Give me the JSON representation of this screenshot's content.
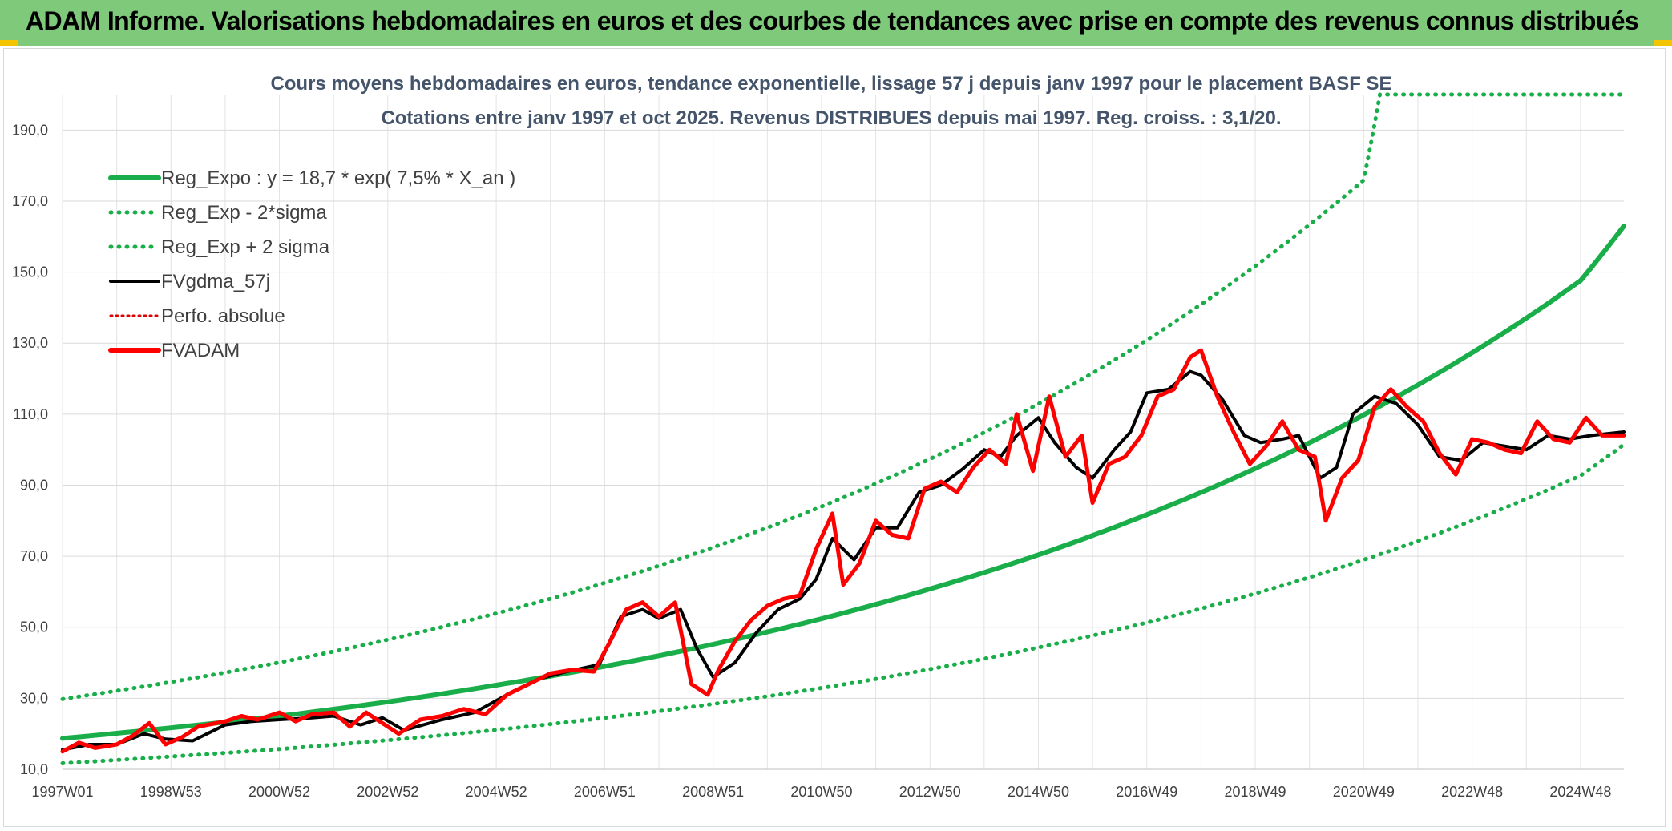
{
  "header": {
    "title": "ADAM Informe. Valorisations hebdomadaires en euros et des courbes de tendances avec prise en compte des revenus connus distribués"
  },
  "chart_data": {
    "type": "line",
    "title": "Cours moyens hebdomadaires en euros, tendance exponentielle, lissage 57 j depuis janv 1997 pour le placement BASF SE",
    "subtitle": "Cotations entre janv 1997 et oct 2025. Revenus DISTRIBUES depuis mai 1997. Reg. croiss. : 3,1/20.",
    "xlabel": "",
    "ylabel": "",
    "x_range": [
      1997.0,
      2025.8
    ],
    "ylim": [
      10,
      200
    ],
    "y_ticks": [
      10,
      30,
      50,
      70,
      90,
      110,
      130,
      150,
      170,
      190
    ],
    "y_tick_labels": [
      "10,0",
      "30,0",
      "50,0",
      "70,0",
      "90,0",
      "110,0",
      "130,0",
      "150,0",
      "170,0",
      "190,0"
    ],
    "x_ticks": [
      1997.0,
      1999.0,
      2001.0,
      2003.0,
      2005.0,
      2007.0,
      2009.0,
      2011.0,
      2013.0,
      2015.0,
      2017.0,
      2019.0,
      2021.0,
      2023.0,
      2025.0
    ],
    "x_tick_labels": [
      "1997W01",
      "1998W53",
      "2000W52",
      "2002W52",
      "2004W52",
      "2006W51",
      "2008W51",
      "2010W50",
      "2012W50",
      "2014W50",
      "2016W49",
      "2018W49",
      "2020W49",
      "2022W48",
      "2024W48"
    ],
    "grid": true,
    "legend_position": "top-left",
    "legend": [
      {
        "label": "Reg_Expo : y = 18,7 * exp( 7,5% *  X_an )",
        "color": "#1aae4a",
        "style": "solid"
      },
      {
        "label": "Reg_Exp - 2*sigma",
        "color": "#1aae4a",
        "style": "dotted"
      },
      {
        "label": "Reg_Exp + 2 sigma",
        "color": "#1aae4a",
        "style": "dotted"
      },
      {
        "label": "FVgdma_57j",
        "color": "#000000",
        "style": "solid"
      },
      {
        "label": "Perfo. absolue",
        "color": "#e00000",
        "style": "dotted"
      },
      {
        "label": "FVADAM",
        "color": "#ff0000",
        "style": "solid"
      }
    ],
    "series": [
      {
        "name": "Reg_Expo : y = 18,7 * exp( 7,5% *  X_an )",
        "x": [
          1997.0,
          1999.0,
          2001.0,
          2003.0,
          2005.0,
          2007.0,
          2009.0,
          2011.0,
          2013.0,
          2015.0,
          2017.0,
          2019.0,
          2021.0,
          2023.0,
          2025.0,
          2025.8
        ],
        "values": [
          18.7,
          21.7,
          25.0,
          29.0,
          33.7,
          39.0,
          45.2,
          52.4,
          60.8,
          70.4,
          81.7,
          94.7,
          109.8,
          127.3,
          147.6,
          163.0
        ]
      },
      {
        "name": "Reg_Exp - 2*sigma",
        "x": [
          1997.0,
          1999.0,
          2001.0,
          2003.0,
          2005.0,
          2007.0,
          2009.0,
          2011.0,
          2013.0,
          2015.0,
          2017.0,
          2019.0,
          2021.0,
          2023.0,
          2025.0,
          2025.8
        ],
        "values": [
          11.7,
          13.6,
          15.7,
          18.2,
          21.1,
          24.5,
          28.4,
          32.9,
          38.2,
          44.3,
          51.3,
          59.5,
          69.0,
          80.0,
          92.7,
          101.5
        ]
      },
      {
        "name": "Reg_Exp + 2 sigma",
        "x": [
          1997.0,
          1999.0,
          2001.0,
          2003.0,
          2005.0,
          2007.0,
          2009.0,
          2011.0,
          2013.0,
          2015.0,
          2017.0,
          2019.0,
          2021.0,
          2021.3,
          2025.8
        ],
        "values": [
          29.8,
          34.6,
          40.1,
          46.5,
          53.9,
          62.5,
          72.5,
          84.0,
          97.4,
          112.9,
          130.9,
          151.7,
          175.9,
          200.0,
          200.0
        ]
      },
      {
        "name": "FVgdma_57j",
        "x": [
          1997.0,
          1997.5,
          1998.0,
          1998.5,
          1998.9,
          1999.4,
          2000.0,
          2000.5,
          2001.0,
          2001.6,
          2002.0,
          2002.5,
          2002.9,
          2003.3,
          2004.0,
          2004.6,
          2005.2,
          2005.8,
          2006.3,
          2006.9,
          2007.3,
          2007.7,
          2008.0,
          2008.4,
          2008.7,
          2009.0,
          2009.4,
          2009.8,
          2010.2,
          2010.6,
          2010.9,
          2011.2,
          2011.6,
          2012.0,
          2012.4,
          2012.8,
          2013.2,
          2013.6,
          2014.0,
          2014.3,
          2014.6,
          2015.0,
          2015.3,
          2015.7,
          2016.0,
          2016.4,
          2016.7,
          2017.0,
          2017.4,
          2017.8,
          2018.0,
          2018.4,
          2018.8,
          2019.1,
          2019.5,
          2019.8,
          2020.2,
          2020.5,
          2020.8,
          2021.2,
          2021.6,
          2022.0,
          2022.4,
          2022.8,
          2023.2,
          2023.6,
          2024.0,
          2024.4,
          2024.8,
          2025.2,
          2025.8
        ],
        "values": [
          15.5,
          17.0,
          17.0,
          20.0,
          18.5,
          18.0,
          22.5,
          23.5,
          24.0,
          24.5,
          25.0,
          22.5,
          24.5,
          21.0,
          24.0,
          26.0,
          31.0,
          35.5,
          37.5,
          39.5,
          53.0,
          55.0,
          52.5,
          55.0,
          44.0,
          36.0,
          40.0,
          48.5,
          55.0,
          58.0,
          63.5,
          75.0,
          69.0,
          78.0,
          78.0,
          88.0,
          90.0,
          94.5,
          100.0,
          98.0,
          104.0,
          109.0,
          102.0,
          95.0,
          92.0,
          100.0,
          105.0,
          116.0,
          117.0,
          122.0,
          121.0,
          114.0,
          104.0,
          102.0,
          103.0,
          104.0,
          92.0,
          95.0,
          110.0,
          115.0,
          113.0,
          107.0,
          98.0,
          97.0,
          102.0,
          101.0,
          100.0,
          104.0,
          103.0,
          104.0,
          105.0
        ]
      },
      {
        "name": "FVADAM",
        "x": [
          1997.0,
          1997.3,
          1997.6,
          1998.0,
          1998.3,
          1998.6,
          1998.9,
          1999.2,
          1999.5,
          2000.0,
          2000.3,
          2000.6,
          2001.0,
          2001.3,
          2001.6,
          2002.0,
          2002.3,
          2002.6,
          2002.9,
          2003.2,
          2003.6,
          2004.0,
          2004.4,
          2004.8,
          2005.2,
          2005.6,
          2006.0,
          2006.4,
          2006.8,
          2007.1,
          2007.4,
          2007.7,
          2008.0,
          2008.3,
          2008.6,
          2008.9,
          2009.1,
          2009.4,
          2009.7,
          2010.0,
          2010.3,
          2010.6,
          2010.9,
          2011.2,
          2011.4,
          2011.7,
          2012.0,
          2012.3,
          2012.6,
          2012.9,
          2013.2,
          2013.5,
          2013.8,
          2014.1,
          2014.4,
          2014.6,
          2014.9,
          2015.2,
          2015.5,
          2015.8,
          2016.0,
          2016.3,
          2016.6,
          2016.9,
          2017.2,
          2017.5,
          2017.8,
          2018.0,
          2018.3,
          2018.6,
          2018.9,
          2019.2,
          2019.5,
          2019.8,
          2020.1,
          2020.3,
          2020.6,
          2020.9,
          2021.2,
          2021.5,
          2021.8,
          2022.1,
          2022.4,
          2022.7,
          2023.0,
          2023.3,
          2023.6,
          2023.9,
          2024.2,
          2024.5,
          2024.8,
          2025.1,
          2025.4,
          2025.8
        ],
        "values": [
          15.0,
          17.5,
          16.0,
          17.0,
          19.5,
          23.0,
          17.0,
          19.0,
          22.0,
          23.5,
          25.0,
          24.0,
          26.0,
          23.5,
          25.5,
          26.0,
          22.0,
          26.0,
          23.0,
          20.0,
          24.0,
          25.0,
          27.0,
          25.5,
          31.0,
          34.0,
          37.0,
          38.0,
          37.5,
          46.0,
          55.0,
          57.0,
          53.0,
          57.0,
          34.0,
          31.0,
          38.0,
          46.0,
          52.0,
          56.0,
          58.0,
          59.0,
          72.0,
          82.0,
          62.0,
          68.0,
          80.0,
          76.0,
          75.0,
          89.0,
          91.0,
          88.0,
          95.0,
          100.0,
          96.0,
          110.0,
          94.0,
          115.0,
          98.0,
          104.0,
          85.0,
          96.0,
          98.0,
          104.0,
          115.0,
          117.0,
          126.0,
          128.0,
          115.0,
          105.0,
          96.0,
          101.0,
          108.0,
          100.0,
          98.0,
          80.0,
          92.0,
          97.0,
          112.0,
          117.0,
          112.0,
          108.0,
          99.0,
          93.0,
          103.0,
          102.0,
          100.0,
          99.0,
          108.0,
          103.0,
          102.0,
          109.0,
          104.0,
          104.0
        ]
      }
    ]
  }
}
